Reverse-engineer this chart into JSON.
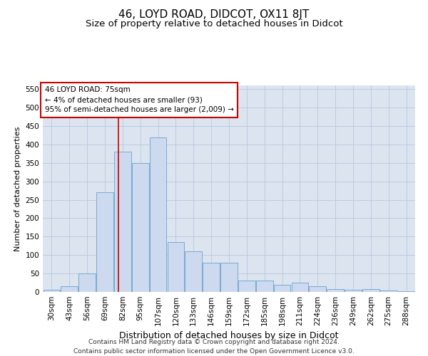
{
  "title": "46, LOYD ROAD, DIDCOT, OX11 8JT",
  "subtitle": "Size of property relative to detached houses in Didcot",
  "xlabel": "Distribution of detached houses by size in Didcot",
  "ylabel": "Number of detached properties",
  "categories": [
    "30sqm",
    "43sqm",
    "56sqm",
    "69sqm",
    "82sqm",
    "95sqm",
    "107sqm",
    "120sqm",
    "133sqm",
    "146sqm",
    "159sqm",
    "172sqm",
    "185sqm",
    "198sqm",
    "211sqm",
    "224sqm",
    "236sqm",
    "249sqm",
    "262sqm",
    "275sqm",
    "288sqm"
  ],
  "values": [
    5,
    15,
    50,
    270,
    380,
    350,
    420,
    135,
    110,
    80,
    80,
    30,
    30,
    20,
    25,
    15,
    8,
    5,
    8,
    3,
    2
  ],
  "bar_color": "#ccd9ee",
  "bar_edge_color": "#7aaad4",
  "grid_color": "#b8c8de",
  "bg_color": "#dce4f0",
  "annotation_box_text": "46 LOYD ROAD: 75sqm\n← 4% of detached houses are smaller (93)\n95% of semi-detached houses are larger (2,009) →",
  "annotation_box_color": "#ffffff",
  "annotation_box_edge_color": "#cc0000",
  "vline_x": 3.75,
  "vline_color": "#cc0000",
  "footer_line1": "Contains HM Land Registry data © Crown copyright and database right 2024.",
  "footer_line2": "Contains public sector information licensed under the Open Government Licence v3.0.",
  "ylim": [
    0,
    560
  ],
  "yticks": [
    0,
    50,
    100,
    150,
    200,
    250,
    300,
    350,
    400,
    450,
    500,
    550
  ],
  "title_fontsize": 11,
  "subtitle_fontsize": 9.5,
  "xlabel_fontsize": 9,
  "ylabel_fontsize": 8,
  "tick_fontsize": 7.5,
  "footer_fontsize": 6.5,
  "ann_fontsize": 7.5
}
